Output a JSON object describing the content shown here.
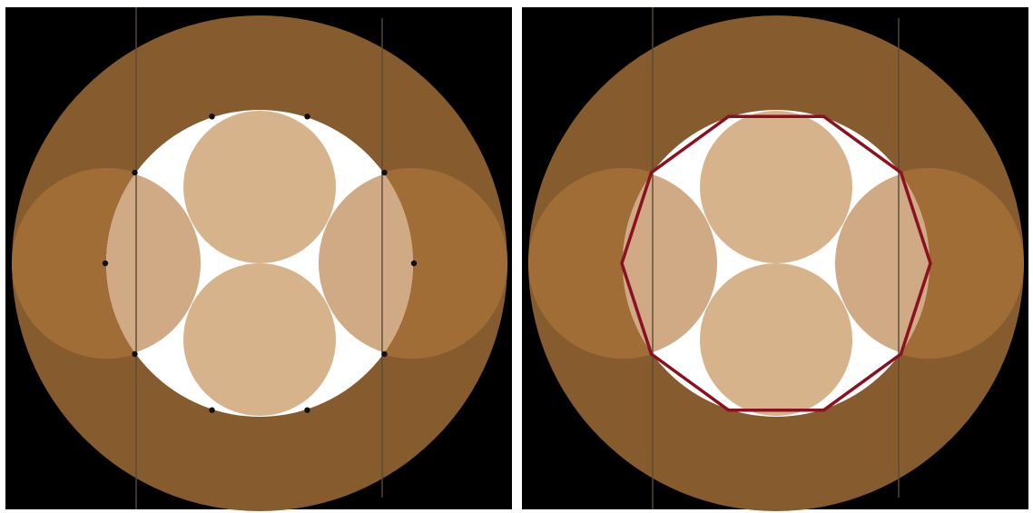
{
  "figure": {
    "panels": [
      {
        "id": "left",
        "markers": "vertex-dots",
        "vertex_count": 10
      },
      {
        "id": "right",
        "markers": "decagon-outline",
        "vertex_count": 10
      }
    ]
  },
  "colors": {
    "background": "#000000",
    "frame": "#ffffff",
    "outer_disk": "#865b2e",
    "side_disks": "#a06d37",
    "inner_hole": "#ffffff",
    "central_disks": "#d6b38b",
    "lens_overlap": "#cfaa85",
    "vertical_lines": "#5a4a3a",
    "dots": "#111111",
    "decagon_stroke": "#8b1020"
  }
}
